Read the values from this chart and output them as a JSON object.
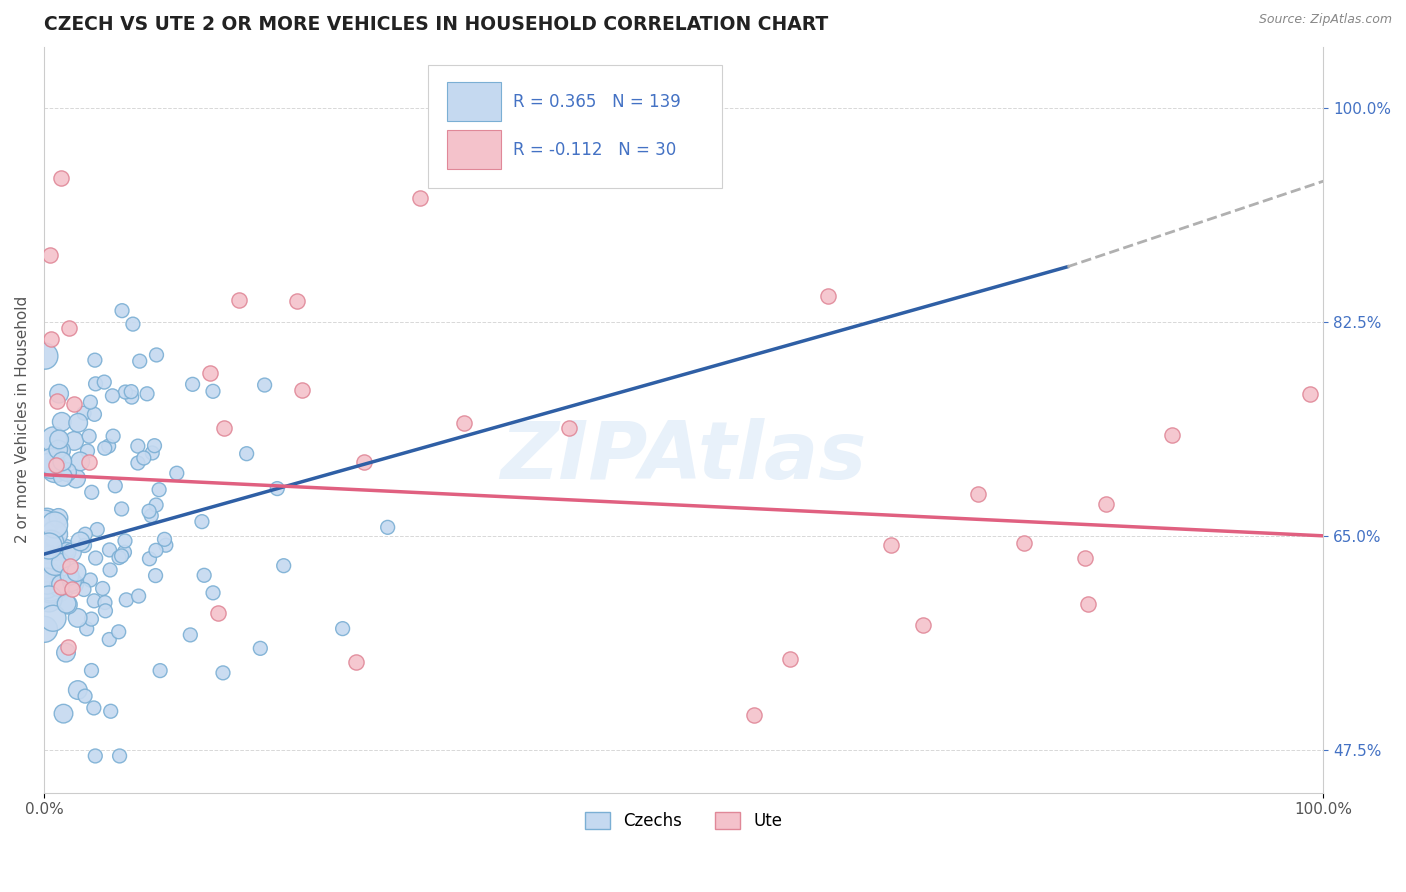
{
  "title": "CZECH VS UTE 2 OR MORE VEHICLES IN HOUSEHOLD CORRELATION CHART",
  "source": "Source: ZipAtlas.com",
  "ylabel": "2 or more Vehicles in Household",
  "xlim": [
    0.0,
    100.0
  ],
  "ylim": [
    44.0,
    105.0
  ],
  "ytick_positions": [
    47.5,
    65.0,
    82.5,
    100.0
  ],
  "ytick_labels": [
    "47.5%",
    "65.0%",
    "82.5%",
    "100.0%"
  ],
  "czech_color": "#c5d9f0",
  "czech_edge_color": "#7bafd4",
  "ute_color": "#f4c2cb",
  "ute_edge_color": "#e08898",
  "czech_R": 0.365,
  "czech_N": 139,
  "ute_R": -0.112,
  "ute_N": 30,
  "czech_line_color": "#2f5fa5",
  "ute_line_color": "#e06080",
  "trend_extend_color": "#b0b0b0",
  "legend_R_color_blue": "#4472c4",
  "legend_N_color_red": "#e03030",
  "watermark": "ZIPAtlas",
  "background_color": "#ffffff",
  "grid_color": "#d8d8d8",
  "czech_trend_start_x": 0.0,
  "czech_trend_start_y": 63.5,
  "czech_trend_end_x": 80.0,
  "czech_trend_end_y": 87.0,
  "czech_ext_end_x": 100.0,
  "czech_ext_end_y": 94.0,
  "ute_trend_start_x": 0.0,
  "ute_trend_start_y": 70.0,
  "ute_trend_end_x": 100.0,
  "ute_trend_end_y": 65.0
}
